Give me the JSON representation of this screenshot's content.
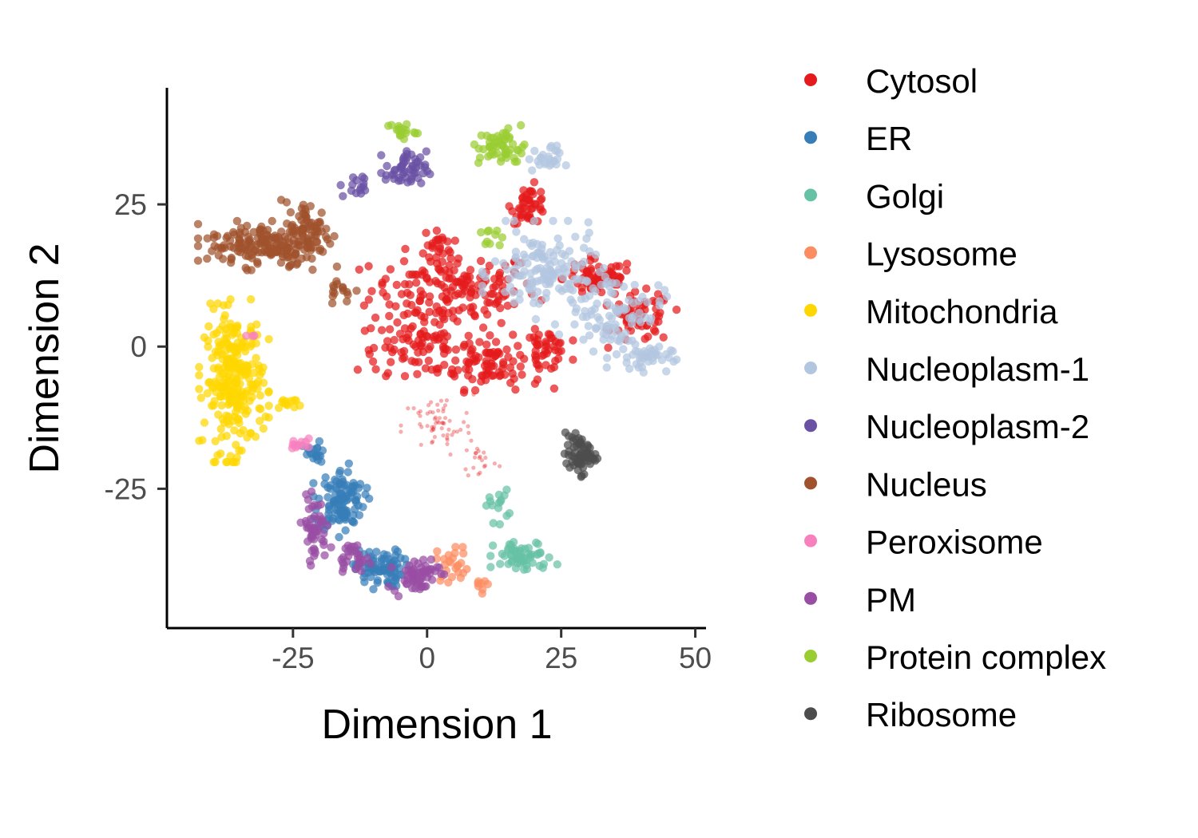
{
  "chart_data": {
    "type": "scatter",
    "title": "",
    "xlabel": "Dimension 1",
    "ylabel": "Dimension 2",
    "xlim": [
      -48.5,
      52
    ],
    "ylim": [
      -49.5,
      45.5
    ],
    "x_ticks": [
      -25,
      0,
      25,
      50
    ],
    "y_ticks": [
      -25,
      0,
      25
    ],
    "x_tick_labels": [
      "-25",
      "0",
      "25",
      "50"
    ],
    "y_tick_labels": [
      "-25",
      "0",
      "25"
    ],
    "grid": false,
    "legend_position": "right",
    "series": [
      {
        "name": "Cytosol",
        "color": "#e41a1c",
        "clusters": [
          {
            "cx": 5,
            "cy": 10,
            "rx": 14,
            "ry": 6,
            "n": 170
          },
          {
            "cx": 12,
            "cy": -3,
            "rx": 9,
            "ry": 4,
            "n": 90
          },
          {
            "cx": -2,
            "cy": 0,
            "rx": 10,
            "ry": 4,
            "n": 80
          },
          {
            "cx": 32,
            "cy": 12,
            "rx": 6,
            "ry": 3,
            "n": 70
          },
          {
            "cx": 40,
            "cy": 5,
            "rx": 5,
            "ry": 4,
            "n": 60
          },
          {
            "cx": 19,
            "cy": 25,
            "rx": 3,
            "ry": 3,
            "n": 45
          },
          {
            "cx": 22,
            "cy": 0,
            "rx": 4,
            "ry": 2.5,
            "n": 35
          },
          {
            "cx": 2,
            "cy": 18,
            "rx": 2.5,
            "ry": 2.5,
            "n": 20
          },
          {
            "cx": 2,
            "cy": -14,
            "rx": 6,
            "ry": 5,
            "n": 60,
            "faint": true
          },
          {
            "cx": 10,
            "cy": -20,
            "rx": 3,
            "ry": 3,
            "n": 20,
            "faint": true
          }
        ]
      },
      {
        "name": "ER",
        "color": "#377eb8",
        "clusters": [
          {
            "cx": -16,
            "cy": -27,
            "rx": 4,
            "ry": 5,
            "n": 110
          },
          {
            "cx": -9,
            "cy": -39,
            "rx": 4,
            "ry": 3,
            "n": 80
          },
          {
            "cx": -21,
            "cy": -19,
            "rx": 2,
            "ry": 2,
            "n": 20
          }
        ]
      },
      {
        "name": "Golgi",
        "color": "#66c2a5",
        "clusters": [
          {
            "cx": 18,
            "cy": -37,
            "rx": 5,
            "ry": 2.5,
            "n": 60
          },
          {
            "cx": 13,
            "cy": -28,
            "rx": 2,
            "ry": 2.5,
            "n": 15
          }
        ]
      },
      {
        "name": "Lysosome",
        "color": "#fc8d62",
        "clusters": [
          {
            "cx": 5,
            "cy": -38,
            "rx": 3,
            "ry": 3,
            "n": 25
          },
          {
            "cx": 10,
            "cy": -42,
            "rx": 1.5,
            "ry": 1.5,
            "n": 8
          }
        ]
      },
      {
        "name": "Mitochondria",
        "color": "#ffd700",
        "clusters": [
          {
            "cx": -36,
            "cy": -6,
            "rx": 5,
            "ry": 11,
            "n": 260
          },
          {
            "cx": -26,
            "cy": -10,
            "rx": 2.5,
            "ry": 1,
            "n": 12
          }
        ]
      },
      {
        "name": "Nucleoplasm-1",
        "color": "#b3c6e0",
        "clusters": [
          {
            "cx": 22,
            "cy": 13,
            "rx": 9,
            "ry": 7,
            "n": 140
          },
          {
            "cx": 35,
            "cy": 6,
            "rx": 8,
            "ry": 6,
            "n": 90
          },
          {
            "cx": 40,
            "cy": -2,
            "rx": 5,
            "ry": 2,
            "n": 40
          },
          {
            "cx": 22,
            "cy": 33,
            "rx": 3,
            "ry": 2,
            "n": 25
          }
        ]
      },
      {
        "name": "Nucleoplasm-2",
        "color": "#6a51a3",
        "clusters": [
          {
            "cx": -4,
            "cy": 31,
            "rx": 3.5,
            "ry": 3,
            "n": 55
          },
          {
            "cx": -13,
            "cy": 28,
            "rx": 3,
            "ry": 2,
            "n": 15
          }
        ]
      },
      {
        "name": "Nucleus",
        "color": "#a0522d",
        "clusters": [
          {
            "cx": -31,
            "cy": 18,
            "rx": 9,
            "ry": 3.5,
            "n": 150
          },
          {
            "cx": -22,
            "cy": 20,
            "rx": 4,
            "ry": 5,
            "n": 80
          },
          {
            "cx": -16,
            "cy": 10,
            "rx": 3,
            "ry": 2,
            "n": 15
          }
        ]
      },
      {
        "name": "Peroxisome",
        "color": "#f781bf",
        "clusters": [
          {
            "cx": -24,
            "cy": -17,
            "rx": 1.5,
            "ry": 1.5,
            "n": 12
          },
          {
            "cx": -33,
            "cy": 2,
            "rx": 1,
            "ry": 1,
            "n": 3
          }
        ]
      },
      {
        "name": "PM",
        "color": "#984ea3",
        "clusters": [
          {
            "cx": -21,
            "cy": -32,
            "rx": 2,
            "ry": 5,
            "n": 50
          },
          {
            "cx": -2,
            "cy": -40,
            "rx": 4,
            "ry": 3,
            "n": 60
          },
          {
            "cx": -14,
            "cy": -37,
            "rx": 3,
            "ry": 2,
            "n": 30
          }
        ]
      },
      {
        "name": "Protein complex",
        "color": "#9acd32",
        "clusters": [
          {
            "cx": 14,
            "cy": 35,
            "rx": 4,
            "ry": 3,
            "n": 55
          },
          {
            "cx": -5,
            "cy": 38,
            "rx": 2.5,
            "ry": 1.5,
            "n": 18
          },
          {
            "cx": 12,
            "cy": 19,
            "rx": 2,
            "ry": 1.5,
            "n": 10
          }
        ]
      },
      {
        "name": "Ribosome",
        "color": "#4d4d4d",
        "clusters": [
          {
            "cx": 28.5,
            "cy": -19,
            "rx": 2.5,
            "ry": 3,
            "n": 70
          }
        ]
      }
    ]
  }
}
